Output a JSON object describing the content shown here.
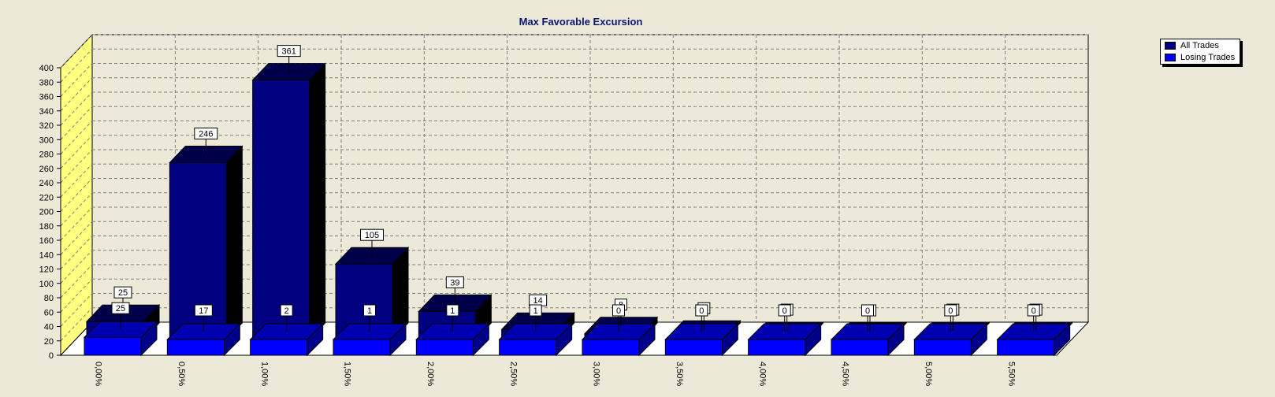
{
  "chart_data": {
    "type": "bar",
    "title": "Max Favorable Excursion",
    "xlabel": "",
    "ylabel": "",
    "ylim": [
      0,
      400
    ],
    "yticks": [
      0,
      20,
      40,
      60,
      80,
      100,
      120,
      140,
      160,
      180,
      200,
      220,
      240,
      260,
      280,
      300,
      320,
      340,
      360,
      380,
      400
    ],
    "categories": [
      "0,00%",
      "0,50%",
      "1,00%",
      "1,50%",
      "2,00%",
      "2,50%",
      "3,00%",
      "3,50%",
      "4,00%",
      "4,50%",
      "5,00%",
      "5,50%"
    ],
    "series": [
      {
        "name": "All Trades",
        "values": [
          25,
          246,
          361,
          105,
          39,
          14,
          8,
          3,
          1,
          0,
          1,
          1
        ],
        "color": "#000080"
      },
      {
        "name": "Losing Trades",
        "values": [
          25,
          17,
          2,
          1,
          1,
          1,
          0,
          0,
          0,
          0,
          0,
          0
        ],
        "color": "#0000ff"
      }
    ],
    "grid": true,
    "legend": "top-right",
    "style": "3d"
  }
}
